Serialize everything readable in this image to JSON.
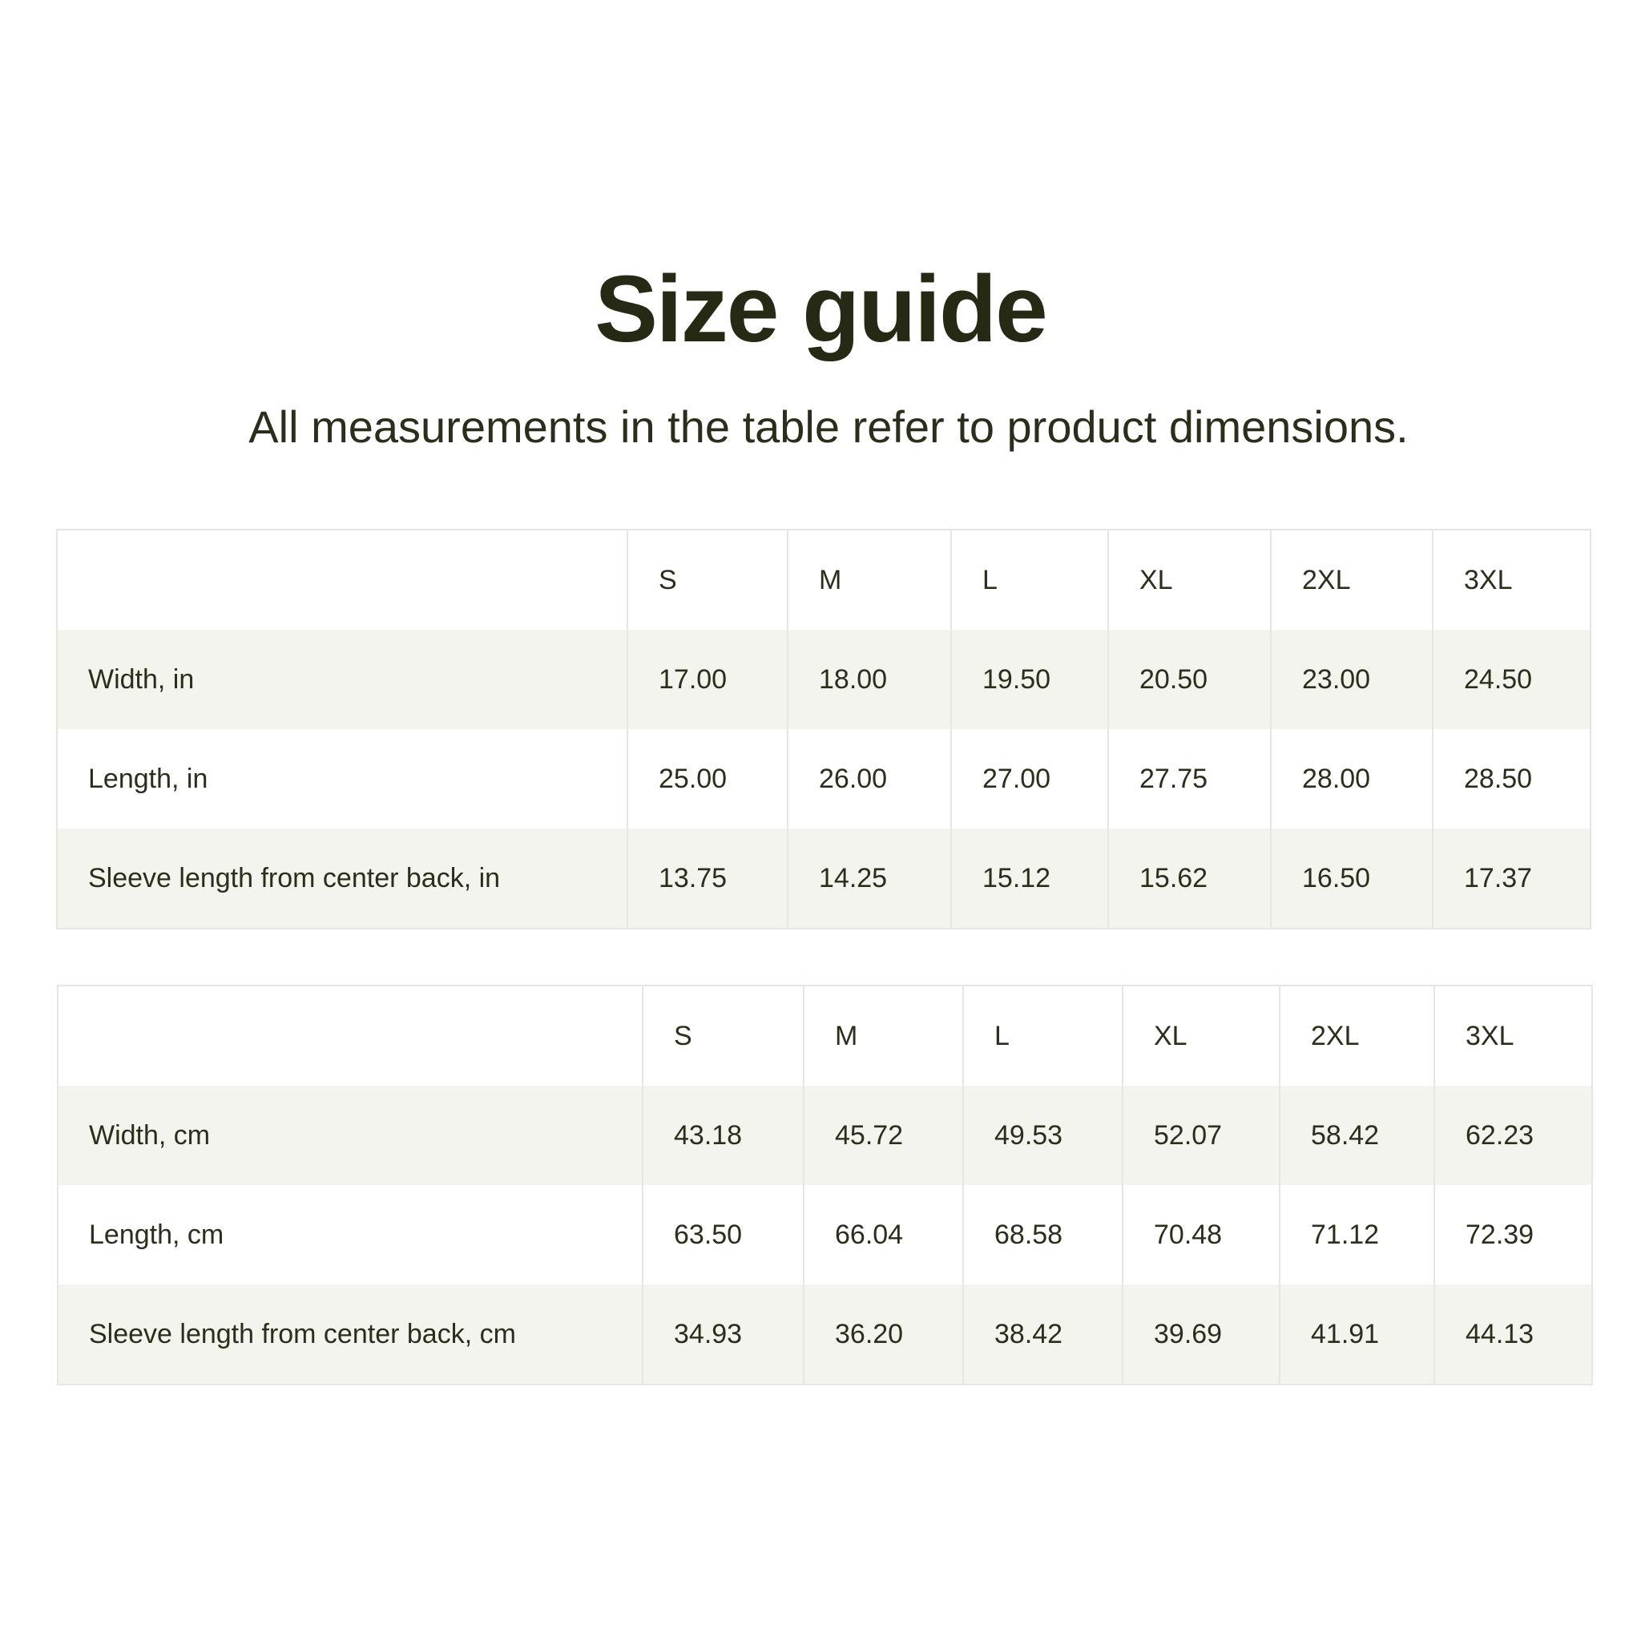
{
  "header": {
    "title": "Size guide",
    "subtitle": "All measurements in the table refer to product dimensions."
  },
  "tables": [
    {
      "columns": [
        "",
        "S",
        "M",
        "L",
        "XL",
        "2XL",
        "3XL"
      ],
      "rows": [
        {
          "label": "Width, in",
          "values": [
            "17.00",
            "18.00",
            "19.50",
            "20.50",
            "23.00",
            "24.50"
          ]
        },
        {
          "label": "Length, in",
          "values": [
            "25.00",
            "26.00",
            "27.00",
            "27.75",
            "28.00",
            "28.50"
          ]
        },
        {
          "label": "Sleeve length from center back, in",
          "values": [
            "13.75",
            "14.25",
            "15.12",
            "15.62",
            "16.50",
            "17.37"
          ]
        }
      ]
    },
    {
      "columns": [
        "",
        "S",
        "M",
        "L",
        "XL",
        "2XL",
        "3XL"
      ],
      "rows": [
        {
          "label": "Width, cm",
          "values": [
            "43.18",
            "45.72",
            "49.53",
            "52.07",
            "58.42",
            "62.23"
          ]
        },
        {
          "label": "Length, cm",
          "values": [
            "63.50",
            "66.04",
            "68.58",
            "70.48",
            "71.12",
            "72.39"
          ]
        },
        {
          "label": "Sleeve length from center back, cm",
          "values": [
            "34.93",
            "36.20",
            "38.42",
            "39.69",
            "41.91",
            "44.13"
          ]
        }
      ]
    }
  ],
  "colors": {
    "text": "#2c2e1c",
    "stripe": "#f4f4ef",
    "border": "#e6e6e2"
  }
}
